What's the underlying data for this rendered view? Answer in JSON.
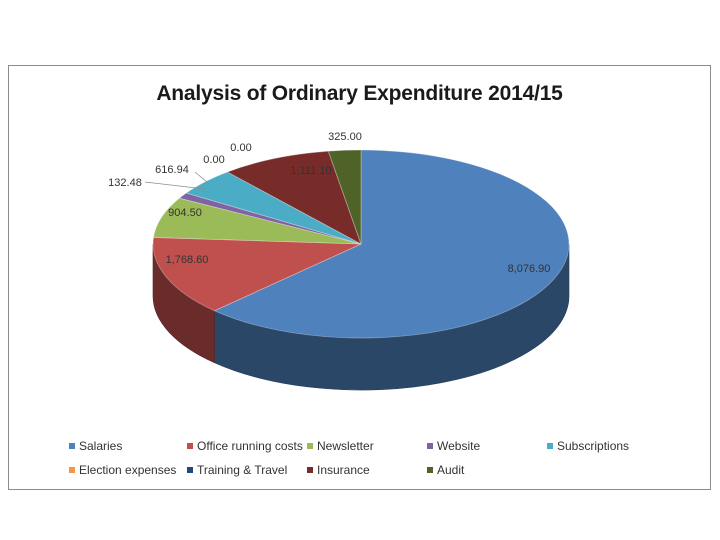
{
  "chart_data": {
    "type": "pie",
    "variant": "3d-pie",
    "title": "Analysis of Ordinary Expenditure 2014/15",
    "categories": [
      "Salaries",
      "Office running costs",
      "Newsletter",
      "Website",
      "Subscriptions",
      "Election expenses",
      "Training & Travel",
      "Insurance",
      "Audit"
    ],
    "values": [
      8076.9,
      1768.6,
      904.5,
      132.48,
      616.94,
      0.0,
      0.0,
      1111.1,
      325.0
    ],
    "data_labels": [
      "8,076.90",
      "1,768.60",
      "904.50",
      "132.48",
      "616.94",
      "0.00",
      "0.00",
      "1,111.10",
      "325.00"
    ],
    "colors": [
      "#4f81bd",
      "#c0504d",
      "#9bbb59",
      "#8064a2",
      "#4bacc6",
      "#f79646",
      "#1f497d",
      "#772c2a",
      "#4f6228"
    ],
    "legend_position": "bottom"
  }
}
